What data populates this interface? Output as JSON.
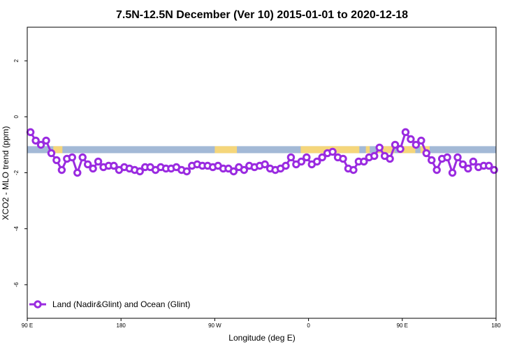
{
  "chart_data": {
    "type": "line",
    "title": "7.5N-12.5N December (Ver 10)   2015-01-01 to 2020-12-18",
    "xlabel": "Longitude (deg E)",
    "ylabel": "XCO2 - MLO trend (ppm)",
    "xlim": [
      90,
      450
    ],
    "ylim": [
      -7.2,
      3.2
    ],
    "x_ticks": [
      {
        "value": 90,
        "label": "90 E"
      },
      {
        "value": 162,
        "label": "180"
      },
      {
        "value": 234,
        "label": "90 W"
      },
      {
        "value": 306,
        "label": "0"
      },
      {
        "value": 378,
        "label": "90 E"
      },
      {
        "value": 450,
        "label": "180"
      }
    ],
    "y_ticks": [
      {
        "value": 2,
        "label": "2"
      },
      {
        "value": 0,
        "label": "0"
      },
      {
        "value": -2,
        "label": "-2"
      },
      {
        "value": -4,
        "label": "-4"
      },
      {
        "value": -6,
        "label": "-6"
      }
    ],
    "grid": false,
    "legend_position": "bottom-left",
    "latitude_band": {
      "y_top": -1.05,
      "y_bottom": -1.3,
      "ocean_color": "#a3b9d6",
      "land_color": "#f5d67b"
    },
    "land_segments": [
      [
        110,
        117
      ],
      [
        234,
        251
      ],
      [
        300,
        345
      ],
      [
        350,
        353
      ],
      [
        359,
        372
      ],
      [
        375,
        388
      ],
      [
        392,
        399
      ]
    ],
    "series": [
      {
        "name": "Land (Nadir&Glint) and Ocean (Glint)",
        "color": "#9a2be0",
        "x": [
          92.5,
          96.5,
          100.5,
          104.5,
          108.5,
          112.5,
          116.5,
          120.5,
          124.5,
          128.5,
          132.5,
          136.5,
          140.5,
          144.5,
          148.5,
          152.5,
          156.5,
          160.5,
          164.5,
          168.5,
          172.5,
          176.5,
          180.5,
          184.5,
          188.5,
          192.5,
          196.5,
          200.5,
          204.5,
          208.5,
          212.5,
          216.5,
          220.5,
          224.5,
          228.5,
          232.5,
          236.5,
          240.5,
          244.5,
          248.5,
          252.5,
          256.5,
          260.5,
          264.5,
          268.5,
          272.5,
          276.5,
          280.5,
          284.5,
          288.5,
          292.5,
          296.5,
          300.5,
          304.5,
          308.5,
          312.5,
          316.5,
          320.5,
          324.5,
          328.5,
          332.5,
          336.5,
          340.5,
          344.5,
          348.5,
          352.5,
          356.5,
          360.5,
          364.5,
          368.5,
          372.5,
          376.5,
          380.5,
          384.5,
          388.5,
          392.5,
          396.5,
          400.5,
          404.5,
          408.5,
          412.5,
          416.5,
          420.5,
          424.5,
          428.5,
          432.5,
          436.5,
          440.5,
          444.5,
          448.5
        ],
        "y": [
          -0.55,
          -0.85,
          -1.0,
          -0.85,
          -1.3,
          -1.55,
          -1.9,
          -1.5,
          -1.45,
          -2.0,
          -1.45,
          -1.7,
          -1.85,
          -1.6,
          -1.8,
          -1.75,
          -1.75,
          -1.9,
          -1.8,
          -1.85,
          -1.9,
          -1.95,
          -1.8,
          -1.8,
          -1.9,
          -1.8,
          -1.85,
          -1.85,
          -1.8,
          -1.9,
          -1.95,
          -1.75,
          -1.7,
          -1.75,
          -1.75,
          -1.8,
          -1.75,
          -1.85,
          -1.85,
          -1.95,
          -1.8,
          -1.9,
          -1.75,
          -1.8,
          -1.75,
          -1.7,
          -1.85,
          -1.9,
          -1.85,
          -1.75,
          -1.45,
          -1.7,
          -1.6,
          -1.45,
          -1.7,
          -1.6,
          -1.45,
          -1.3,
          -1.25,
          -1.45,
          -1.5,
          -1.85,
          -1.9,
          -1.6,
          -1.6,
          -1.45,
          -1.4,
          -1.1,
          -1.4,
          -1.5,
          -1.0,
          -1.15,
          -0.55,
          -0.8,
          -1.0,
          -0.85,
          -1.3,
          -1.55,
          -1.9,
          -1.5,
          -1.45,
          -2.0,
          -1.45,
          -1.7,
          -1.85,
          -1.6,
          -1.8,
          -1.75,
          -1.75,
          -1.9
        ]
      }
    ]
  }
}
